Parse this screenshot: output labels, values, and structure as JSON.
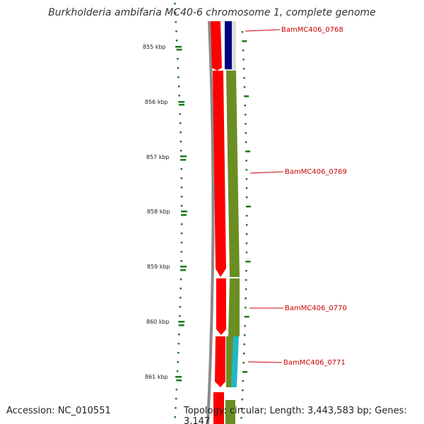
{
  "title": "Burkholderia ambifaria MC40-6 chromosome 1, complete genome",
  "footer": {
    "accession": "Accession: NC_010551",
    "topology": "Topology: circular; Length: 3,443,583 bp; Genes: 3,147"
  },
  "ticks": [
    "855 kbp",
    "856 kbp",
    "857 kbp",
    "858 kbp",
    "859 kbp",
    "860 kbp",
    "861 kbp"
  ],
  "genes": [
    {
      "label": "BamMC406_0768"
    },
    {
      "label": "BamMC406_0769"
    },
    {
      "label": "BamMC406_0770"
    },
    {
      "label": "BamMC406_0771"
    }
  ],
  "colors": {
    "label_red": "#cc0000",
    "tick_green": "#1a7a1a",
    "backbone_gray": "#8a8a8a",
    "cds_red": "#ff0000",
    "gene_navy": "#000080",
    "gene_olive": "#6b8e23",
    "gene_cyan": "#22b7c4"
  }
}
